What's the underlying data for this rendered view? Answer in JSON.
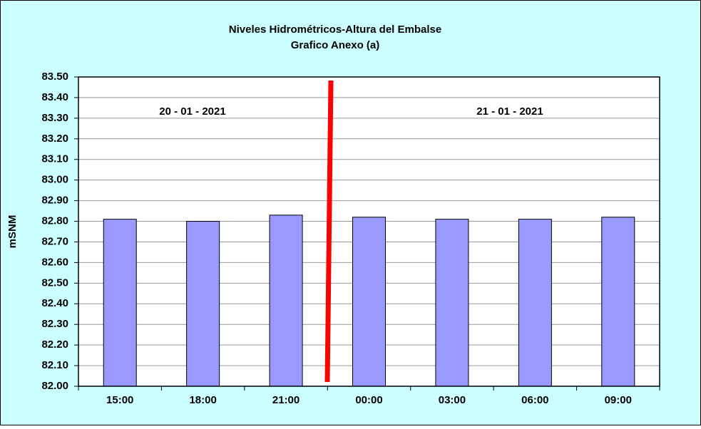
{
  "chart_data": {
    "type": "bar",
    "title": "Niveles Hidrométricos-Altura del Embalse",
    "subtitle": "Grafico Anexo (a)",
    "y_label": "mSNM",
    "annotations": [
      "20 - 01 - 2021",
      "21 - 01 - 2021"
    ],
    "categories": [
      "15:00",
      "18:00",
      "21:00",
      "00:00",
      "03:00",
      "06:00",
      "09:00"
    ],
    "values": [
      82.81,
      82.8,
      82.83,
      82.82,
      82.81,
      82.81,
      82.82
    ],
    "color": "#9999ff",
    "ylim": [
      82,
      83.5
    ],
    "yticks": [
      {
        "value": 82,
        "label": "82.00"
      },
      {
        "value": 82.1,
        "label": "82.10"
      },
      {
        "value": 82.2,
        "label": "82.20"
      },
      {
        "value": 82.3,
        "label": "82.30"
      },
      {
        "value": 82.4,
        "label": "82.40"
      },
      {
        "value": 82.5,
        "label": "82.50"
      },
      {
        "value": 82.6,
        "label": "82.60"
      },
      {
        "value": 82.7,
        "label": "82.70"
      },
      {
        "value": 82.8,
        "label": "82.80"
      },
      {
        "value": 82.9,
        "label": "82.90"
      },
      {
        "value": 83,
        "label": "83.00"
      },
      {
        "value": 83.1,
        "label": "83.10"
      },
      {
        "value": 83.2,
        "label": "83.20"
      },
      {
        "value": 83.3,
        "label": "83.30"
      },
      {
        "value": 83.4,
        "label": "83.40"
      },
      {
        "value": 83.5,
        "label": "83.50"
      }
    ],
    "grid": true
  }
}
